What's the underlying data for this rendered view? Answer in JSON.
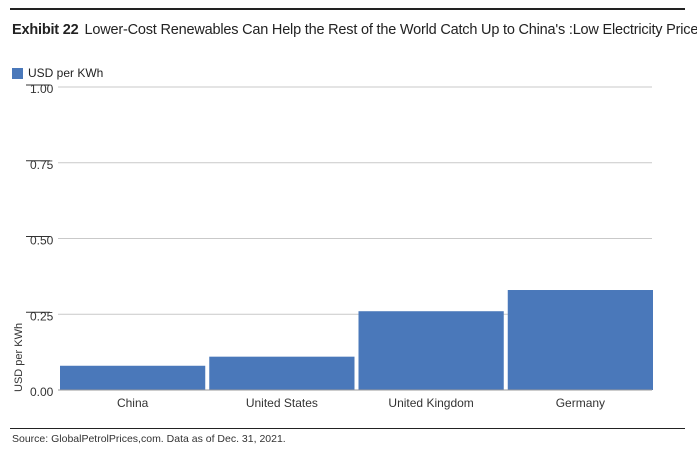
{
  "header": {
    "exhibit": "Exhibit 22",
    "title": "Lower-Cost Renewables Can Help the Rest of the World Catch Up to China's :Low Electricity Prices"
  },
  "legend": {
    "label": "USD per KWh"
  },
  "colors": {
    "bar": "#4a78ba",
    "grid": "#c9c9c9",
    "text": "#333333"
  },
  "chart_data": {
    "type": "bar",
    "categories": [
      "China",
      "United States",
      "United Kingdom",
      "Germany"
    ],
    "series": [
      {
        "name": "USD per KWh",
        "values": [
          0.08,
          0.11,
          0.26,
          0.33
        ]
      }
    ],
    "ylabel": "USD per KWh",
    "ylim": [
      0,
      1.0
    ],
    "yticks": [
      0.0,
      0.25,
      0.5,
      0.75,
      1.0
    ],
    "ytick_labels": [
      "0.00",
      "0.25",
      "0.50",
      "0.75",
      "1.00"
    ],
    "grid": true,
    "legend_position": "top-left"
  },
  "footer": {
    "source": "Source: GlobalPetrolPrices,com. Data as of Dec. 31, 2021."
  }
}
